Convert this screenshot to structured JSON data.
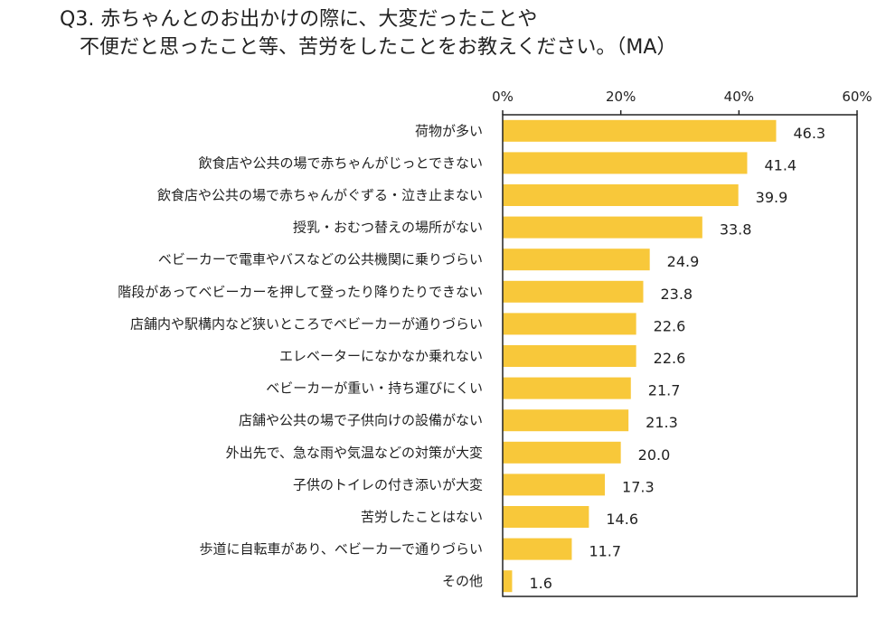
{
  "title_line1": "Q3. 赤ちゃんとのお出かけの際に、大変だったことや",
  "title_line2": "不便だと思ったこと等、苦労をしたことをお教えください。（MA）",
  "chart_data": {
    "type": "bar",
    "orientation": "horizontal",
    "title": "Q3. 赤ちゃんとのお出かけの際に、大変だったことや 不便だと思ったこと等、苦労をしたことをお教えください。（MA）",
    "categories": [
      "荷物が多い",
      "飲食店や公共の場で赤ちゃんがじっとできない",
      "飲食店や公共の場で赤ちゃんがぐずる・泣き止まない",
      "授乳・おむつ替えの場所がない",
      "ベビーカーで電車やバスなどの公共機関に乗りづらい",
      "階段があってベビーカーを押して登ったり降りたりできない",
      "店舗内や駅構内など狭いところでベビーカーが通りづらい",
      "エレベーターになかなか乗れない",
      "ベビーカーが重い・持ち運びにくい",
      "店舗や公共の場で子供向けの設備がない",
      "外出先で、急な雨や気温などの対策が大変",
      "子供のトイレの付き添いが大変",
      "苦労したことはない",
      "歩道に自転車があり、ベビーカーで通りづらい",
      "その他"
    ],
    "values": [
      46.3,
      41.4,
      39.9,
      33.8,
      24.9,
      23.8,
      22.6,
      22.6,
      21.7,
      21.3,
      20.0,
      17.3,
      14.6,
      11.7,
      1.6
    ],
    "value_labels": [
      "46.3",
      "41.4",
      "39.9",
      "33.8",
      "24.9",
      "23.8",
      "22.6",
      "22.6",
      "21.7",
      "21.3",
      "20.0",
      "17.3",
      "14.6",
      "11.7",
      "1.6"
    ],
    "xlim": [
      0,
      60
    ],
    "ticks": [
      0,
      20,
      40,
      60
    ],
    "tick_labels": [
      "0%",
      "20%",
      "40%",
      "60%"
    ],
    "bar_color": "#F8C83A",
    "grid": false
  }
}
